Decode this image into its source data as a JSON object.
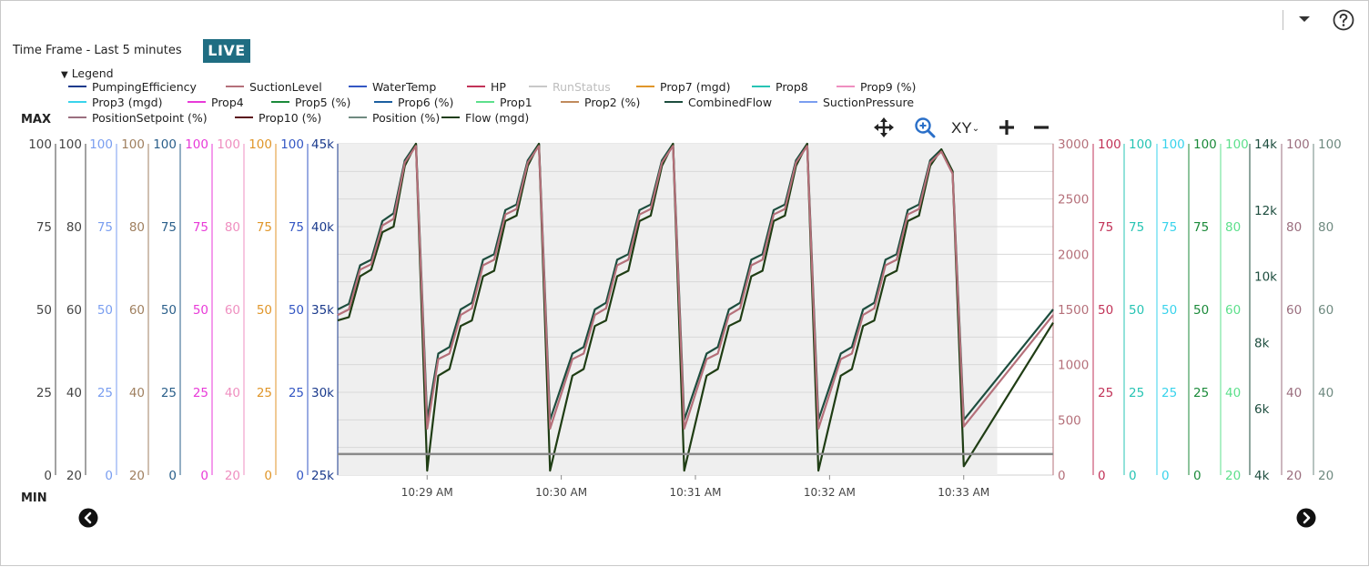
{
  "header": {
    "timeframe_label": "Time Frame -  Last 5 minutes",
    "live_label": "LIVE",
    "legend_title": "Legend",
    "max_label": "MAX",
    "min_label": "MIN",
    "xy_label": "XY"
  },
  "legend": [
    {
      "label": "PumpingEfficiency",
      "color": "#1a3a8c"
    },
    {
      "label": "SuctionLevel",
      "color": "#b5707a"
    },
    {
      "label": "WaterTemp",
      "color": "#3457c4"
    },
    {
      "label": "HP",
      "color": "#c23358"
    },
    {
      "label": "RunStatus",
      "color": "#c8c8c8",
      "disabled": true
    },
    {
      "label": "Prop7 (mgd)",
      "color": "#e0962a"
    },
    {
      "label": "Prop8",
      "color": "#27c4b4"
    },
    {
      "label": "Prop9 (%)",
      "color": "#ef8fc0"
    },
    {
      "label": "Prop3 (mgd)",
      "color": "#39d3ec"
    },
    {
      "label": "Prop4",
      "color": "#e83ad8"
    },
    {
      "label": "Prop5 (%)",
      "color": "#1b8a3a"
    },
    {
      "label": "Prop6 (%)",
      "color": "#1b5fa0"
    },
    {
      "label": "Prop1",
      "color": "#5de08c"
    },
    {
      "label": "Prop2 (%)",
      "color": "#c08a5c"
    },
    {
      "label": "CombinedFlow",
      "color": "#1d4d3e"
    },
    {
      "label": "SuctionPressure",
      "color": "#7a9ef0"
    },
    {
      "label": "PositionSetpoint (%)",
      "color": "#9b6f7f"
    },
    {
      "label": "Prop10 (%)",
      "color": "#5a0f1a"
    },
    {
      "label": "Position (%)",
      "color": "#6f8a80"
    },
    {
      "label": "Flow (mgd)",
      "color": "#1f3d14"
    }
  ],
  "chart_data": {
    "type": "line",
    "x_ticks": [
      "10:29 AM",
      "10:30 AM",
      "10:31 AM",
      "10:32 AM",
      "10:33 AM"
    ],
    "x_range": [
      "10:28:20 AM",
      "10:33:40 AM"
    ],
    "grid": true,
    "historical_shading_until": "10:33:15 AM",
    "left_axes": [
      {
        "ticks": [
          "100",
          "75",
          "50",
          "25",
          "0"
        ],
        "color": "#444444"
      },
      {
        "ticks": [
          "100",
          "80",
          "60",
          "40",
          "20"
        ],
        "color": "#444444"
      },
      {
        "ticks": [
          "100",
          "75",
          "50",
          "25",
          "0"
        ],
        "color": "#7a9ef0"
      },
      {
        "ticks": [
          "100",
          "80",
          "60",
          "40",
          "20"
        ],
        "color": "#a08060"
      },
      {
        "ticks": [
          "100",
          "75",
          "50",
          "25",
          "0"
        ],
        "color": "#2a5f8a"
      },
      {
        "ticks": [
          "100",
          "75",
          "50",
          "25",
          "0"
        ],
        "color": "#e83ad8"
      },
      {
        "ticks": [
          "100",
          "80",
          "60",
          "40",
          "20"
        ],
        "color": "#ef8fc0"
      },
      {
        "ticks": [
          "100",
          "75",
          "50",
          "25",
          "0"
        ],
        "color": "#e0962a"
      },
      {
        "ticks": [
          "100",
          "75",
          "50",
          "25",
          "0"
        ],
        "color": "#3457c4"
      },
      {
        "ticks": [
          "45k",
          "40k",
          "35k",
          "30k",
          "25k"
        ],
        "color": "#1a3a8c"
      }
    ],
    "right_axes": [
      {
        "ticks": [
          "3000",
          "2500",
          "2000",
          "1500",
          "1000",
          "500",
          "0"
        ],
        "color": "#b5707a"
      },
      {
        "ticks": [
          "100",
          "75",
          "50",
          "25",
          "0"
        ],
        "color": "#c23358"
      },
      {
        "ticks": [
          "100",
          "75",
          "50",
          "25",
          "0"
        ],
        "color": "#27c4b4"
      },
      {
        "ticks": [
          "100",
          "75",
          "50",
          "25",
          "0"
        ],
        "color": "#39d3ec"
      },
      {
        "ticks": [
          "100",
          "75",
          "50",
          "25",
          "0"
        ],
        "color": "#1b8a3a"
      },
      {
        "ticks": [
          "100",
          "80",
          "60",
          "40",
          "20"
        ],
        "color": "#5de08c"
      },
      {
        "ticks": [
          "14k",
          "12k",
          "10k",
          "8k",
          "6k",
          "4k"
        ],
        "color": "#1d4d3e"
      },
      {
        "ticks": [
          "100",
          "80",
          "60",
          "40",
          "20"
        ],
        "color": "#9b6f7f"
      },
      {
        "ticks": [
          "100",
          "80",
          "60",
          "40",
          "20"
        ],
        "color": "#6f8a80"
      }
    ],
    "series": [
      {
        "name": "CombinedFlow",
        "color": "#1d4d3e",
        "y_axis": "0–3000",
        "points": [
          [
            "10:28:20",
            1500
          ],
          [
            "10:28:25",
            1550
          ],
          [
            "10:28:30",
            1900
          ],
          [
            "10:28:35",
            1950
          ],
          [
            "10:28:40",
            2300
          ],
          [
            "10:28:45",
            2370
          ],
          [
            "10:28:50",
            2850
          ],
          [
            "10:28:55",
            3000
          ],
          [
            "10:29:00",
            500
          ],
          [
            "10:29:05",
            1100
          ],
          [
            "10:29:10",
            1160
          ],
          [
            "10:29:15",
            1500
          ],
          [
            "10:29:20",
            1560
          ],
          [
            "10:29:25",
            1950
          ],
          [
            "10:29:30",
            2000
          ],
          [
            "10:29:35",
            2400
          ],
          [
            "10:29:40",
            2450
          ],
          [
            "10:29:45",
            2850
          ],
          [
            "10:29:50",
            3000
          ],
          [
            "10:29:55",
            500
          ],
          [
            "10:30:05",
            1100
          ],
          [
            "10:30:10",
            1160
          ],
          [
            "10:30:15",
            1500
          ],
          [
            "10:30:20",
            1560
          ],
          [
            "10:30:25",
            1950
          ],
          [
            "10:30:30",
            2000
          ],
          [
            "10:30:35",
            2400
          ],
          [
            "10:30:40",
            2450
          ],
          [
            "10:30:45",
            2850
          ],
          [
            "10:30:50",
            3000
          ],
          [
            "10:30:55",
            500
          ],
          [
            "10:31:05",
            1100
          ],
          [
            "10:31:10",
            1160
          ],
          [
            "10:31:15",
            1500
          ],
          [
            "10:31:20",
            1560
          ],
          [
            "10:31:25",
            1950
          ],
          [
            "10:31:30",
            2000
          ],
          [
            "10:31:35",
            2400
          ],
          [
            "10:31:40",
            2450
          ],
          [
            "10:31:45",
            2850
          ],
          [
            "10:31:50",
            3000
          ],
          [
            "10:31:55",
            500
          ],
          [
            "10:32:05",
            1100
          ],
          [
            "10:32:10",
            1160
          ],
          [
            "10:32:15",
            1500
          ],
          [
            "10:32:20",
            1560
          ],
          [
            "10:32:25",
            1950
          ],
          [
            "10:32:30",
            2000
          ],
          [
            "10:32:35",
            2400
          ],
          [
            "10:32:40",
            2450
          ],
          [
            "10:32:45",
            2850
          ],
          [
            "10:32:50",
            2950
          ],
          [
            "10:32:55",
            2750
          ],
          [
            "10:33:00",
            500
          ],
          [
            "10:33:40",
            1500
          ]
        ]
      },
      {
        "name": "Flow (mgd)",
        "color": "#1f3d14",
        "y_axis": "0–3000",
        "points": [
          [
            "10:28:20",
            1400
          ],
          [
            "10:28:25",
            1430
          ],
          [
            "10:28:30",
            1800
          ],
          [
            "10:28:35",
            1860
          ],
          [
            "10:28:40",
            2200
          ],
          [
            "10:28:45",
            2250
          ],
          [
            "10:28:50",
            2800
          ],
          [
            "10:28:55",
            3000
          ],
          [
            "10:29:00",
            40
          ],
          [
            "10:29:05",
            900
          ],
          [
            "10:29:10",
            960
          ],
          [
            "10:29:15",
            1350
          ],
          [
            "10:29:20",
            1400
          ],
          [
            "10:29:25",
            1800
          ],
          [
            "10:29:30",
            1850
          ],
          [
            "10:29:35",
            2300
          ],
          [
            "10:29:40",
            2350
          ],
          [
            "10:29:45",
            2800
          ],
          [
            "10:29:50",
            3000
          ],
          [
            "10:29:55",
            40
          ],
          [
            "10:30:05",
            900
          ],
          [
            "10:30:10",
            960
          ],
          [
            "10:30:15",
            1350
          ],
          [
            "10:30:20",
            1400
          ],
          [
            "10:30:25",
            1800
          ],
          [
            "10:30:30",
            1850
          ],
          [
            "10:30:35",
            2300
          ],
          [
            "10:30:40",
            2350
          ],
          [
            "10:30:45",
            2800
          ],
          [
            "10:30:50",
            3000
          ],
          [
            "10:30:55",
            40
          ],
          [
            "10:31:05",
            900
          ],
          [
            "10:31:10",
            960
          ],
          [
            "10:31:15",
            1350
          ],
          [
            "10:31:20",
            1400
          ],
          [
            "10:31:25",
            1800
          ],
          [
            "10:31:30",
            1850
          ],
          [
            "10:31:35",
            2300
          ],
          [
            "10:31:40",
            2350
          ],
          [
            "10:31:45",
            2800
          ],
          [
            "10:31:50",
            3000
          ],
          [
            "10:31:55",
            40
          ],
          [
            "10:32:05",
            900
          ],
          [
            "10:32:10",
            960
          ],
          [
            "10:32:15",
            1350
          ],
          [
            "10:32:20",
            1400
          ],
          [
            "10:32:25",
            1800
          ],
          [
            "10:32:30",
            1850
          ],
          [
            "10:32:35",
            2300
          ],
          [
            "10:32:40",
            2350
          ],
          [
            "10:32:45",
            2800
          ],
          [
            "10:32:50",
            2950
          ],
          [
            "10:32:55",
            2750
          ],
          [
            "10:33:00",
            80
          ],
          [
            "10:33:40",
            1380
          ]
        ]
      },
      {
        "name": "SuctionLevel",
        "color": "#b5707a",
        "y_axis": "0–3000",
        "points": [
          [
            "10:28:20",
            1450
          ],
          [
            "10:28:25",
            1500
          ],
          [
            "10:28:30",
            1860
          ],
          [
            "10:28:35",
            1910
          ],
          [
            "10:28:40",
            2260
          ],
          [
            "10:28:45",
            2320
          ],
          [
            "10:28:50",
            2830
          ],
          [
            "10:28:55",
            2980
          ],
          [
            "10:29:00",
            420
          ],
          [
            "10:29:05",
            1050
          ],
          [
            "10:29:10",
            1100
          ],
          [
            "10:29:15",
            1450
          ],
          [
            "10:29:20",
            1510
          ],
          [
            "10:29:25",
            1900
          ],
          [
            "10:29:30",
            1950
          ],
          [
            "10:29:35",
            2360
          ],
          [
            "10:29:40",
            2410
          ],
          [
            "10:29:45",
            2830
          ],
          [
            "10:29:50",
            2980
          ],
          [
            "10:29:55",
            420
          ],
          [
            "10:30:05",
            1050
          ],
          [
            "10:30:10",
            1100
          ],
          [
            "10:30:15",
            1450
          ],
          [
            "10:30:20",
            1510
          ],
          [
            "10:30:25",
            1900
          ],
          [
            "10:30:30",
            1950
          ],
          [
            "10:30:35",
            2360
          ],
          [
            "10:30:40",
            2410
          ],
          [
            "10:30:45",
            2830
          ],
          [
            "10:30:50",
            2980
          ],
          [
            "10:30:55",
            420
          ],
          [
            "10:31:05",
            1050
          ],
          [
            "10:31:10",
            1100
          ],
          [
            "10:31:15",
            1450
          ],
          [
            "10:31:20",
            1510
          ],
          [
            "10:31:25",
            1900
          ],
          [
            "10:31:30",
            1950
          ],
          [
            "10:31:35",
            2360
          ],
          [
            "10:31:40",
            2410
          ],
          [
            "10:31:45",
            2830
          ],
          [
            "10:31:50",
            2980
          ],
          [
            "10:31:55",
            420
          ],
          [
            "10:32:05",
            1050
          ],
          [
            "10:32:10",
            1100
          ],
          [
            "10:32:15",
            1450
          ],
          [
            "10:32:20",
            1510
          ],
          [
            "10:32:25",
            1900
          ],
          [
            "10:32:30",
            1950
          ],
          [
            "10:32:35",
            2360
          ],
          [
            "10:32:40",
            2410
          ],
          [
            "10:32:45",
            2830
          ],
          [
            "10:32:50",
            2930
          ],
          [
            "10:32:55",
            2730
          ],
          [
            "10:33:00",
            440
          ],
          [
            "10:33:40",
            1450
          ]
        ]
      },
      {
        "name": "Position (%)",
        "color": "#8a8a8a",
        "y_axis": "0–3000",
        "points": [
          [
            "10:28:20",
            190
          ],
          [
            "10:33:40",
            190
          ]
        ]
      }
    ]
  }
}
